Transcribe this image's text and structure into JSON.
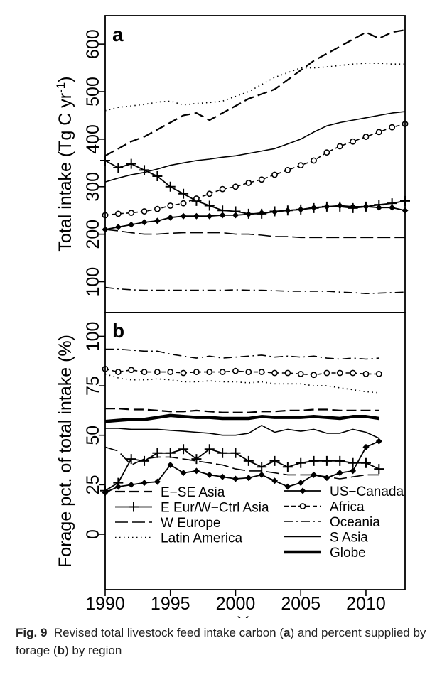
{
  "figure": {
    "caption_label": "Fig. 9",
    "caption_part1": "Revised total livestock feed intake carbon (",
    "caption_a": "a",
    "caption_part2": ") and percent supplied by forage (",
    "caption_b": "b",
    "caption_part3": ") by region"
  },
  "chart_data": [
    {
      "panel": "a",
      "type": "line",
      "ylabel": "Total intake (Tg C  yr⁻¹)",
      "ylabel_main": "Total intake (Tg C  yr",
      "ylabel_sup": "-1",
      "ylabel_end": ")",
      "xlabel": "",
      "ylim": [
        35,
        660
      ],
      "xlim": [
        1990,
        2013
      ],
      "yticks": [
        100,
        200,
        300,
        400,
        500,
        600
      ],
      "xticks": [],
      "x": [
        1990,
        1991,
        1992,
        1993,
        1994,
        1995,
        1996,
        1997,
        1998,
        1999,
        2000,
        2001,
        2002,
        2003,
        2004,
        2005,
        2006,
        2007,
        2008,
        2009,
        2010,
        2011,
        2012,
        2013
      ],
      "series": [
        {
          "name": "E-SE Asia",
          "style": "dashed",
          "values": [
            365,
            380,
            395,
            405,
            420,
            435,
            450,
            455,
            440,
            455,
            470,
            485,
            495,
            505,
            525,
            545,
            565,
            580,
            595,
            610,
            625,
            612,
            625,
            630
          ]
        },
        {
          "name": "E Eur/W-Ctrl Asia",
          "style": "plus",
          "values": [
            355,
            340,
            348,
            335,
            322,
            300,
            285,
            270,
            260,
            250,
            248,
            243,
            243,
            248,
            250,
            252,
            255,
            258,
            258,
            255,
            258,
            262,
            265,
            270
          ]
        },
        {
          "name": "W Europe",
          "style": "longdash",
          "values": [
            210,
            207,
            203,
            200,
            200,
            202,
            203,
            203,
            203,
            203,
            200,
            200,
            198,
            195,
            195,
            193,
            193,
            193,
            193,
            193,
            193,
            193,
            193,
            193
          ]
        },
        {
          "name": "Latin America",
          "style": "dotted",
          "values": [
            460,
            467,
            470,
            473,
            478,
            480,
            472,
            475,
            477,
            480,
            490,
            500,
            515,
            530,
            540,
            550,
            550,
            552,
            555,
            558,
            560,
            560,
            558,
            558
          ]
        },
        {
          "name": "US-Canada",
          "style": "diamond",
          "values": [
            210,
            215,
            220,
            225,
            228,
            235,
            238,
            238,
            238,
            240,
            240,
            242,
            245,
            247,
            250,
            252,
            256,
            258,
            260,
            258,
            258,
            256,
            256,
            250
          ]
        },
        {
          "name": "Africa",
          "style": "circle",
          "values": [
            240,
            243,
            245,
            248,
            253,
            260,
            265,
            275,
            285,
            295,
            300,
            308,
            315,
            325,
            335,
            345,
            355,
            372,
            385,
            395,
            405,
            415,
            425,
            432
          ]
        },
        {
          "name": "Oceania",
          "style": "dotdash",
          "values": [
            88,
            85,
            83,
            82,
            82,
            82,
            82,
            82,
            82,
            82,
            83,
            82,
            82,
            81,
            80,
            80,
            80,
            80,
            78,
            77,
            75,
            76,
            77,
            78
          ]
        },
        {
          "name": "S Asia",
          "style": "solid",
          "values": [
            310,
            318,
            325,
            330,
            337,
            345,
            350,
            355,
            358,
            362,
            365,
            370,
            375,
            380,
            390,
            400,
            415,
            428,
            435,
            440,
            445,
            450,
            455,
            458
          ]
        }
      ]
    },
    {
      "panel": "b",
      "type": "line",
      "ylabel": "Forage pct. of total intake (%)",
      "xlabel": "Year",
      "ylim": [
        -28,
        112
      ],
      "xlim": [
        1990,
        2013
      ],
      "yticks": [
        0,
        25,
        50,
        75,
        100
      ],
      "xticks": [
        1990,
        1995,
        2000,
        2005,
        2010
      ],
      "legend_position": "bottom",
      "x": [
        1990,
        1991,
        1992,
        1993,
        1994,
        1995,
        1996,
        1997,
        1998,
        1999,
        2000,
        2001,
        2002,
        2003,
        2004,
        2005,
        2006,
        2007,
        2008,
        2009,
        2010,
        2011
      ],
      "series": [
        {
          "name": "E-SE Asia",
          "style": "dashed",
          "values": [
            63.5,
            63.5,
            63,
            63,
            62.5,
            62,
            62,
            62.5,
            62,
            61.5,
            61.5,
            61.5,
            62,
            62,
            62.5,
            62.5,
            63,
            63,
            62.5,
            62.5,
            62.5,
            62.5
          ]
        },
        {
          "name": "E Eur/W-Ctrl Asia",
          "style": "plus",
          "values": [
            22,
            26,
            38,
            37,
            41,
            41,
            43,
            38,
            43,
            41,
            41,
            37,
            34,
            37,
            34,
            36,
            37,
            37,
            37,
            36,
            36,
            33
          ]
        },
        {
          "name": "W Europe",
          "style": "longdash",
          "values": [
            44,
            42,
            35,
            38,
            39,
            39,
            38,
            37,
            36,
            35,
            33,
            32,
            32,
            31,
            30,
            30,
            30,
            29,
            28,
            29,
            30,
            30
          ]
        },
        {
          "name": "Latin America",
          "style": "dotted",
          "values": [
            81,
            79,
            78,
            78,
            78.5,
            78,
            77,
            77,
            77.5,
            77,
            77,
            76.5,
            77,
            76,
            76,
            76,
            75,
            75,
            74,
            73,
            72,
            71.5
          ]
        },
        {
          "name": "US-Canada",
          "style": "diamond",
          "values": [
            21,
            24,
            25,
            26,
            26.5,
            35,
            31,
            32,
            30,
            29,
            28,
            28.5,
            30,
            27,
            24,
            26,
            30,
            28.5,
            31,
            32,
            44,
            47
          ]
        },
        {
          "name": "Africa",
          "style": "circle",
          "values": [
            83.5,
            82,
            83,
            82,
            82,
            82,
            81.5,
            82,
            82,
            82,
            82.5,
            82,
            82,
            81.5,
            81.5,
            81,
            80.5,
            81.5,
            81.5,
            81.5,
            81,
            81
          ]
        },
        {
          "name": "Oceania",
          "style": "dotdash",
          "values": [
            93.5,
            93.5,
            93,
            92.5,
            92.5,
            91,
            90,
            89,
            90,
            89,
            89.5,
            90,
            90.5,
            89.5,
            90,
            89.5,
            90,
            89,
            88.5,
            89,
            88.5,
            89
          ]
        },
        {
          "name": "S Asia",
          "style": "solid",
          "values": [
            53.5,
            53.5,
            53,
            53,
            53,
            52.5,
            52,
            51.5,
            51,
            50,
            50,
            51,
            55,
            51.5,
            53,
            52,
            53,
            51,
            51,
            53,
            51.5,
            48.5
          ]
        },
        {
          "name": "Globe",
          "style": "thick",
          "values": [
            57,
            57.5,
            58,
            58,
            59,
            60,
            59.5,
            59,
            59,
            58.5,
            58.5,
            58.5,
            59.5,
            59,
            59,
            59,
            59.5,
            59,
            58.5,
            59.5,
            59.5,
            58.5
          ]
        }
      ],
      "legend_left": [
        "E-SE Asia",
        "E Eur/W-Ctrl Asia",
        "W Europe",
        "Latin America"
      ],
      "legend_right": [
        "US-Canada",
        "Africa",
        "Oceania",
        "S Asia",
        "Globe"
      ],
      "legend_text": {
        "E-SE Asia": "E−SE Asia",
        "E Eur/W-Ctrl Asia": "E Eur/W−Ctrl Asia",
        "W Europe": "W Europe",
        "Latin America": "Latin America",
        "US-Canada": "US−Canada",
        "Africa": "Africa",
        "Oceania": "Oceania",
        "S Asia": "S Asia",
        "Globe": "Globe"
      }
    }
  ]
}
